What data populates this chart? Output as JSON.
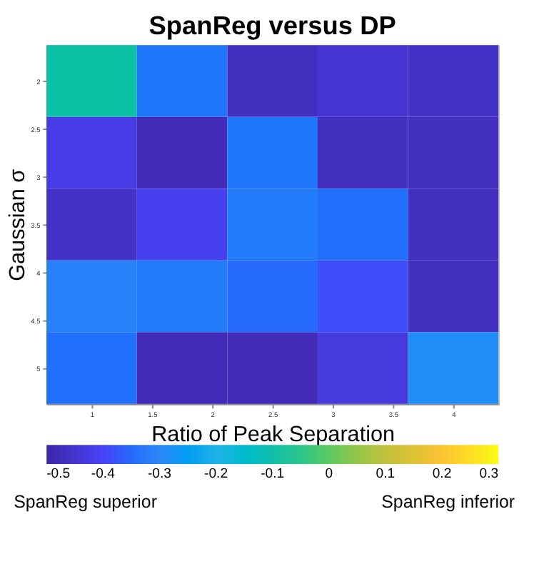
{
  "chart_data": {
    "type": "heatmap",
    "title": "SpanReg versus DP",
    "xlabel": "Ratio of Peak Separation",
    "ylabel": "Gaussian σ",
    "x": [
      1,
      1.75,
      2.5,
      3.25,
      4
    ],
    "y": [
      2,
      2.75,
      3.5,
      4.25,
      5
    ],
    "xlim": [
      0.625,
      4.375
    ],
    "ylim": [
      5.375,
      1.625
    ],
    "xticks": [
      1,
      1.5,
      2,
      2.5,
      3,
      3.5,
      4
    ],
    "yticks": [
      2,
      2.5,
      3,
      3.5,
      4,
      4.5,
      5
    ],
    "cells": [
      [
        -0.09,
        -0.33,
        -0.47,
        -0.45,
        -0.46
      ],
      [
        -0.42,
        -0.48,
        -0.33,
        -0.47,
        -0.47
      ],
      [
        -0.46,
        -0.41,
        -0.32,
        -0.34,
        -0.47
      ],
      [
        -0.31,
        -0.32,
        -0.35,
        -0.39,
        -0.47
      ],
      [
        -0.34,
        -0.48,
        -0.48,
        -0.43,
        -0.29
      ]
    ],
    "clim": [
      -0.5,
      0.3
    ],
    "cticks": [
      -0.5,
      -0.4,
      -0.3,
      -0.2,
      -0.1,
      0,
      0.1,
      0.2,
      0.3
    ],
    "annotations": [
      "SpanReg superior",
      "SpanReg inferior"
    ]
  }
}
